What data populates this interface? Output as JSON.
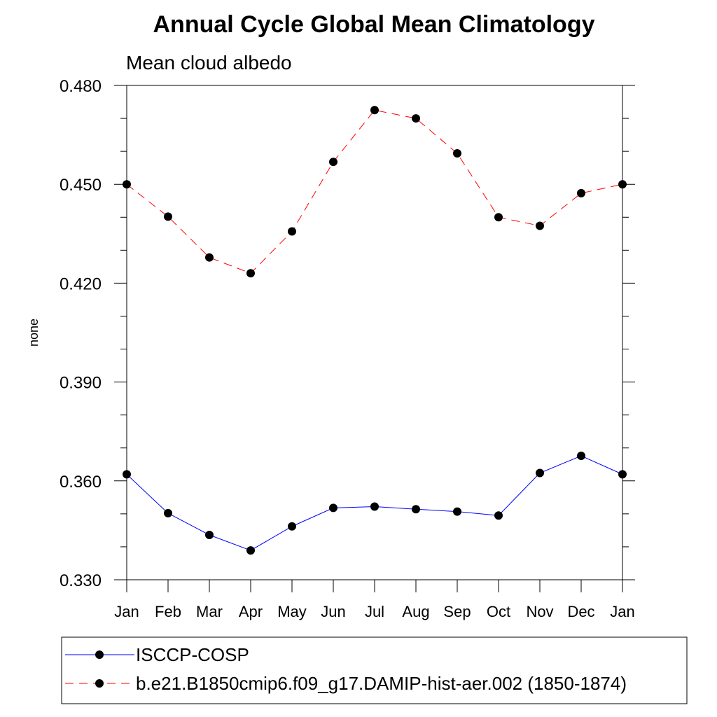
{
  "chart_data": {
    "type": "line",
    "title": "Annual Cycle Global Mean Climatology",
    "subtitle": "Mean cloud albedo",
    "xlabel": "",
    "ylabel": "none",
    "categories": [
      "Jan",
      "Feb",
      "Mar",
      "Apr",
      "May",
      "Jun",
      "Jul",
      "Aug",
      "Sep",
      "Oct",
      "Nov",
      "Dec",
      "Jan"
    ],
    "ylim": [
      0.33,
      0.48
    ],
    "yticks": [
      "0.330",
      "0.360",
      "0.390",
      "0.420",
      "0.450",
      "0.480"
    ],
    "grid": false,
    "legend_position": "bottom",
    "series": [
      {
        "name": "ISCCP-COSP",
        "color": "#0000ff",
        "line_style": "solid",
        "marker": "filled-circle",
        "values": [
          0.362,
          0.3502,
          0.3436,
          0.3389,
          0.3462,
          0.3518,
          0.3522,
          0.3514,
          0.3507,
          0.3495,
          0.3624,
          0.3676,
          0.362
        ]
      },
      {
        "name": "b.e21.B1850cmip6.f09_g17.DAMIP-hist-aer.002 (1850-1874)",
        "color": "#ff0000",
        "line_style": "dashed",
        "marker": "filled-circle",
        "values": [
          0.45,
          0.4402,
          0.4278,
          0.423,
          0.4357,
          0.4568,
          0.4725,
          0.47,
          0.4594,
          0.44,
          0.4374,
          0.4473,
          0.45
        ]
      }
    ]
  }
}
